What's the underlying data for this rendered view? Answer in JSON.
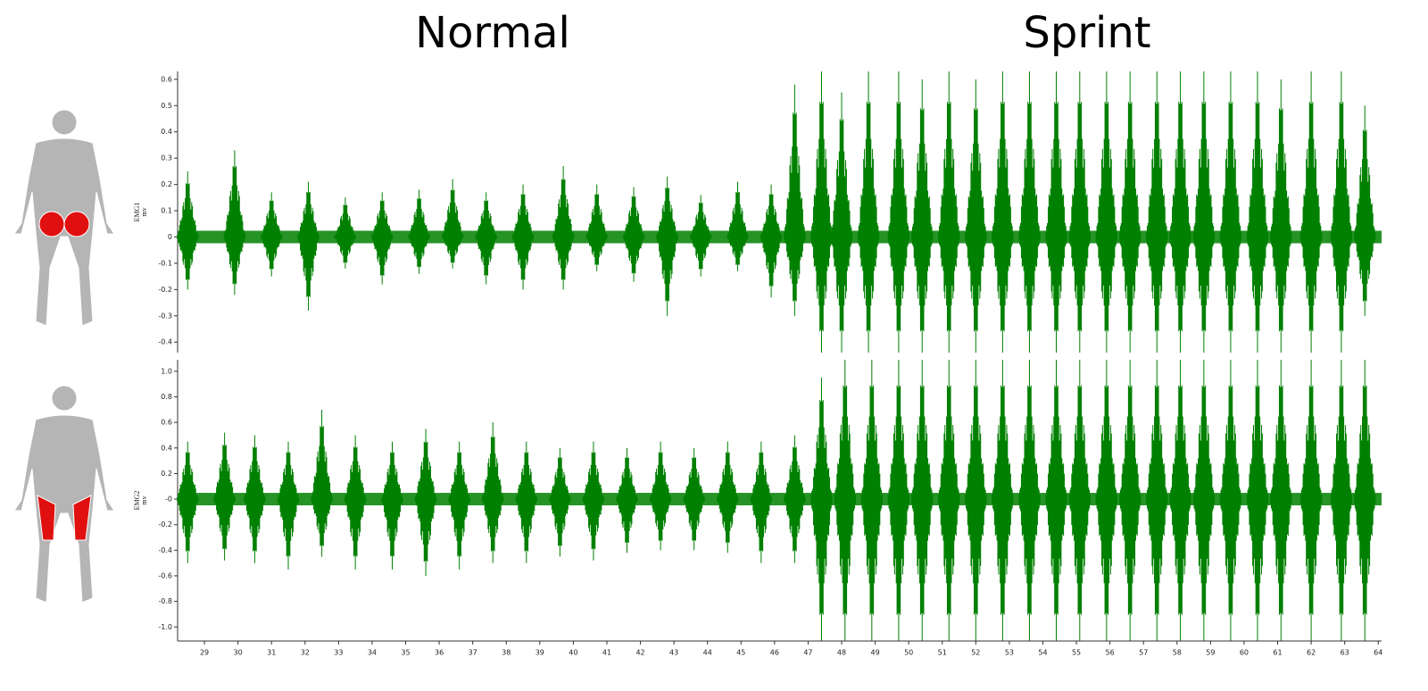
{
  "chart_data": [
    {
      "type": "emg",
      "annotations": [
        "Normal",
        "Sprint"
      ],
      "ylabel": "EMG1",
      "yunit": "mv",
      "color": "#008000",
      "xlim": [
        28.2,
        64.1
      ],
      "ylim": [
        -0.44,
        0.63
      ],
      "yticks": [
        -0.4,
        -0.3,
        -0.2,
        -0.1,
        0,
        0.1,
        0.2,
        0.3,
        0.4,
        0.5,
        0.6
      ],
      "x": [
        28.5,
        29.9,
        31.0,
        32.1,
        33.2,
        34.3,
        35.4,
        36.4,
        37.4,
        38.5,
        39.7,
        40.7,
        41.8,
        42.8,
        43.8,
        44.9,
        45.9,
        46.6,
        47.4,
        48.0,
        48.8,
        49.7,
        50.4,
        51.2,
        52.0,
        52.8,
        53.6,
        54.4,
        55.1,
        55.9,
        56.6,
        57.4,
        58.1,
        58.8,
        59.6,
        60.4,
        61.1,
        62.0,
        62.9,
        63.6
      ],
      "high": [
        0.25,
        0.33,
        0.17,
        0.21,
        0.15,
        0.17,
        0.18,
        0.22,
        0.17,
        0.2,
        0.27,
        0.2,
        0.19,
        0.23,
        0.16,
        0.21,
        0.2,
        0.58,
        0.63,
        0.55,
        0.63,
        0.63,
        0.6,
        0.63,
        0.6,
        0.63,
        0.63,
        0.63,
        0.63,
        0.63,
        0.63,
        0.63,
        0.63,
        0.63,
        0.63,
        0.63,
        0.6,
        0.63,
        0.63,
        0.5
      ],
      "low": [
        -0.2,
        -0.22,
        -0.15,
        -0.28,
        -0.12,
        -0.18,
        -0.14,
        -0.12,
        -0.18,
        -0.2,
        -0.2,
        -0.13,
        -0.17,
        -0.3,
        -0.15,
        -0.13,
        -0.23,
        -0.3,
        -0.44,
        -0.44,
        -0.44,
        -0.44,
        -0.44,
        -0.44,
        -0.44,
        -0.44,
        -0.44,
        -0.44,
        -0.44,
        -0.44,
        -0.44,
        -0.44,
        -0.44,
        -0.44,
        -0.44,
        -0.44,
        -0.44,
        -0.44,
        -0.44,
        -0.3
      ]
    },
    {
      "type": "emg",
      "ylabel": "EMG2",
      "yunit": "mv",
      "color": "#008000",
      "xlim": [
        28.2,
        64.1
      ],
      "ylim": [
        -1.11,
        1.09
      ],
      "yticks": [
        {
          "value": -1.0,
          "label": "-1.0"
        },
        -0.8,
        -0.6,
        -0.4,
        -0.2,
        {
          "value": 0,
          "label": "-0"
        },
        0.2,
        0.4,
        0.6,
        0.8,
        {
          "value": 1.0,
          "label": "1.0"
        }
      ],
      "xticks": [
        29,
        30,
        31,
        32,
        33,
        34,
        35,
        36,
        37,
        38,
        39,
        40,
        41,
        42,
        43,
        44,
        45,
        46,
        47,
        48,
        49,
        50,
        51,
        52,
        53,
        54,
        55,
        56,
        57,
        58,
        59,
        60,
        61,
        62,
        63,
        64
      ],
      "x": [
        28.5,
        29.6,
        30.5,
        31.5,
        32.5,
        33.5,
        34.6,
        35.6,
        36.6,
        37.6,
        38.6,
        39.6,
        40.6,
        41.6,
        42.6,
        43.6,
        44.6,
        45.6,
        46.6,
        47.4,
        48.1,
        48.9,
        49.7,
        50.4,
        51.2,
        52.0,
        52.8,
        53.6,
        54.4,
        55.1,
        55.9,
        56.6,
        57.4,
        58.1,
        58.8,
        59.6,
        60.4,
        61.1,
        62.0,
        62.9,
        63.6
      ],
      "high": [
        0.45,
        0.52,
        0.5,
        0.45,
        0.7,
        0.5,
        0.45,
        0.55,
        0.45,
        0.6,
        0.45,
        0.4,
        0.45,
        0.4,
        0.45,
        0.4,
        0.45,
        0.45,
        0.5,
        0.95,
        1.09,
        1.09,
        1.09,
        1.09,
        1.09,
        1.09,
        1.09,
        1.09,
        1.09,
        1.09,
        1.09,
        1.09,
        1.09,
        1.09,
        1.09,
        1.09,
        1.09,
        1.09,
        1.09,
        1.09,
        1.09
      ],
      "low": [
        -0.5,
        -0.48,
        -0.5,
        -0.55,
        -0.45,
        -0.55,
        -0.55,
        -0.6,
        -0.55,
        -0.5,
        -0.5,
        -0.45,
        -0.48,
        -0.42,
        -0.4,
        -0.4,
        -0.42,
        -0.5,
        -0.5,
        -1.11,
        -1.11,
        -1.11,
        -1.11,
        -1.11,
        -1.11,
        -1.11,
        -1.11,
        -1.11,
        -1.11,
        -1.11,
        -1.11,
        -1.11,
        -1.11,
        -1.11,
        -1.11,
        -1.11,
        -1.11,
        -1.11,
        -1.11,
        -1.11,
        -1.11
      ]
    }
  ]
}
